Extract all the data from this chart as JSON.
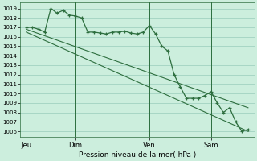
{
  "xlabel": "Pression niveau de la mer( hPa )",
  "bg_color": "#cceedd",
  "grid_color": "#99ccbb",
  "line_color": "#2d6e3e",
  "yticks": [
    1006,
    1007,
    1008,
    1009,
    1010,
    1011,
    1012,
    1013,
    1014,
    1015,
    1016,
    1017,
    1018,
    1019
  ],
  "ylim": [
    1005.4,
    1019.6
  ],
  "day_labels": [
    "Jeu",
    "Dim",
    "Ven",
    "Sam"
  ],
  "day_positions": [
    0.5,
    4.5,
    10.5,
    15.5
  ],
  "vline_positions": [
    0.5,
    4.5,
    10.5,
    15.5
  ],
  "xlim": [
    0,
    19
  ],
  "line1_x": [
    0.5,
    1.0,
    1.5,
    2.0,
    2.5,
    3.0,
    3.5,
    4.0,
    4.5,
    5.0,
    5.5,
    6.0,
    6.5,
    7.0,
    7.5,
    8.0,
    8.5,
    9.0,
    9.5,
    10.0,
    10.5,
    11.0,
    11.5,
    12.0,
    12.5,
    13.0,
    13.5,
    14.0,
    14.5,
    15.0,
    15.5,
    16.0,
    16.5,
    17.0,
    17.5,
    18.0,
    18.5
  ],
  "line1_y": [
    1017.0,
    1017.0,
    1016.8,
    1016.5,
    1019.0,
    1018.5,
    1018.8,
    1018.3,
    1018.2,
    1018.0,
    1016.5,
    1016.5,
    1016.4,
    1016.3,
    1016.5,
    1016.5,
    1016.6,
    1016.4,
    1016.3,
    1016.5,
    1017.2,
    1016.3,
    1015.0,
    1014.5,
    1012.0,
    1010.7,
    1009.5,
    1009.5,
    1009.5,
    1009.8,
    1010.2,
    1009.0,
    1008.0,
    1008.5,
    1007.0,
    1006.0,
    1006.2
  ],
  "line2_x": [
    0.5,
    18.5
  ],
  "line2_y": [
    1016.5,
    1006.0
  ],
  "line3_x": [
    0.5,
    18.5
  ],
  "line3_y": [
    1016.8,
    1008.5
  ]
}
